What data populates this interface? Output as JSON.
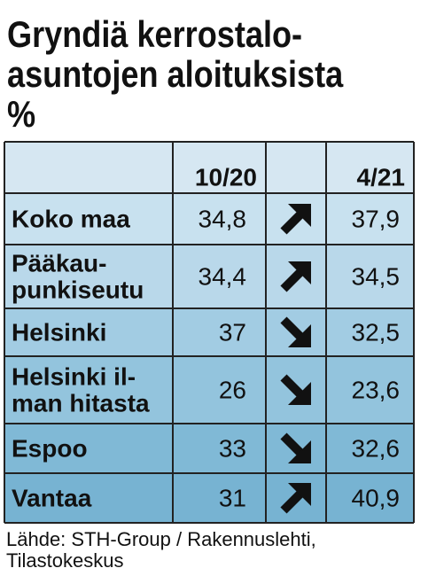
{
  "title": [
    "Gryndiä kerrostalo-",
    "asuntojen aloituksista",
    "%"
  ],
  "table": {
    "header": [
      "",
      "10/20",
      "",
      "4/21"
    ],
    "rows": [
      {
        "name": [
          "Koko maa"
        ],
        "v1": "34,8",
        "arrow": "up",
        "v2": "37,9"
      },
      {
        "name": [
          "Pääkau-",
          "punkiseutu"
        ],
        "v1": "34,4",
        "arrow": "up",
        "v2": "34,5"
      },
      {
        "name": [
          "Helsinki"
        ],
        "v1": "37",
        "arrow": "down",
        "v2": "32,5"
      },
      {
        "name": [
          "Helsinki il-",
          "man hitasta"
        ],
        "v1": "26",
        "arrow": "down",
        "v2": "23,6"
      },
      {
        "name": [
          "Espoo"
        ],
        "v1": "33",
        "arrow": "down",
        "v2": "32,6"
      },
      {
        "name": [
          "Vantaa"
        ],
        "v1": "31",
        "arrow": "up",
        "v2": "40,9"
      }
    ]
  },
  "source": [
    "Lähde: STH-Group / Rakennuslehti,",
    "Tilastokeskus"
  ]
}
